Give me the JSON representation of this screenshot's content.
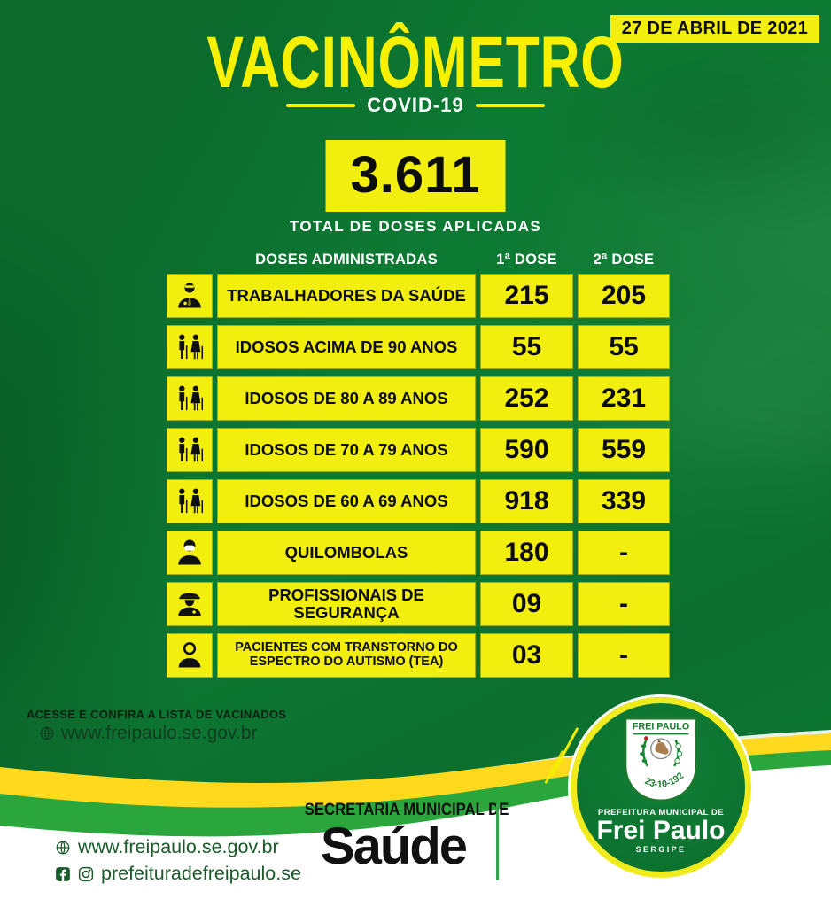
{
  "date_badge": {
    "text": "27 DE ABRIL DE 2021"
  },
  "title": {
    "text": "VACINÔMETRO"
  },
  "subtitle": {
    "text": "COVID-19"
  },
  "total": {
    "value": "3.611",
    "label": "TOTAL DE DOSES APLICADAS"
  },
  "table": {
    "headers": {
      "group": "DOSES ADMINISTRADAS",
      "dose1": "1ª DOSE",
      "dose2": "2ª DOSE"
    },
    "rows": [
      {
        "icon": "health-worker-icon",
        "label": "TRABALHADORES DA SAÚDE",
        "dose1": "215",
        "dose2": "205"
      },
      {
        "icon": "elderly-couple-icon",
        "label": "IDOSOS ACIMA DE 90 ANOS",
        "dose1": "55",
        "dose2": "55"
      },
      {
        "icon": "elderly-couple-icon",
        "label": "IDOSOS DE 80 A 89 ANOS",
        "dose1": "252",
        "dose2": "231"
      },
      {
        "icon": "elderly-couple-icon",
        "label": "IDOSOS DE 70 A 79 ANOS",
        "dose1": "590",
        "dose2": "559"
      },
      {
        "icon": "elderly-couple-icon",
        "label": "IDOSOS DE 60 A 69 ANOS",
        "dose1": "918",
        "dose2": "339"
      },
      {
        "icon": "masked-person-icon",
        "label": "QUILOMBOLAS",
        "dose1": "180",
        "dose2": "-"
      },
      {
        "icon": "police-officer-icon",
        "label": "PROFISSIONAIS DE SEGURANÇA",
        "dose1": "09",
        "dose2": "-"
      },
      {
        "icon": "person-icon",
        "label": "PACIENTES COM TRANSTORNO DO ESPECTRO DO AUTISMO (TEA)",
        "dose1": "03",
        "dose2": "-"
      }
    ]
  },
  "access": {
    "line1": "ACESSE E CONFIRA A LISTA DE VACINADOS",
    "line2": "www.freipaulo.se.gov.br"
  },
  "footer": {
    "website": "www.freipaulo.se.gov.br",
    "social": "prefeituradefreipaulo.se"
  },
  "health_dept": {
    "line1": "SECRETARIA MUNICIPAL DE",
    "line2": "Saúde"
  },
  "city_logo": {
    "shield_title": "FREI PAULO",
    "shield_date": "23-10-1920",
    "line1": "PREFEITURA MUNICIPAL DE",
    "line2": "Frei Paulo",
    "line3": "SERGIPE"
  },
  "colors": {
    "bg_green": "#0d7a33",
    "box_yellow": "#f2ee0e",
    "ribbon_yellow": "#ffd91e",
    "ribbon_green": "#2aa63c",
    "footer_green": "#1c5a2c"
  }
}
